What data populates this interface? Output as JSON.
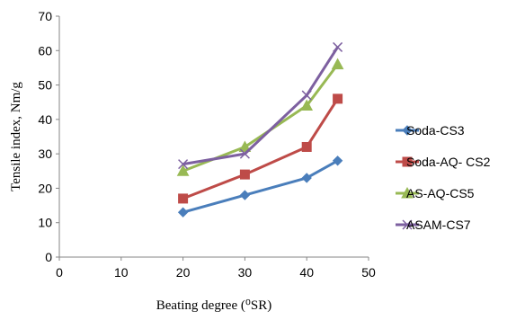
{
  "chart_data": {
    "type": "line",
    "title": "",
    "xlabel": "Beating degree (⁰SR)",
    "ylabel": "Tensile index, Nm/g",
    "xlim": [
      0,
      50
    ],
    "ylim": [
      0,
      70
    ],
    "x_ticks": [
      "0",
      "10",
      "20",
      "30",
      "40",
      "50"
    ],
    "y_ticks": [
      "0",
      "10",
      "20",
      "30",
      "40",
      "50",
      "60",
      "70"
    ],
    "grid": false,
    "legend_position": "right",
    "x": [
      20,
      30,
      40,
      45
    ],
    "series": [
      {
        "name": "Soda-CS3",
        "values": [
          13,
          18,
          23,
          28
        ],
        "color": "#4a7ebb",
        "marker": "diamond"
      },
      {
        "name": "Soda-AQ- CS2",
        "values": [
          17,
          24,
          32,
          46
        ],
        "color": "#be4b48",
        "marker": "square"
      },
      {
        "name": "AS-AQ-CS5",
        "values": [
          25,
          32,
          44,
          56
        ],
        "color": "#98b954",
        "marker": "triangle"
      },
      {
        "name": "ASAM-CS7",
        "values": [
          27,
          30,
          47,
          61
        ],
        "color": "#7d60a0",
        "marker": "x"
      }
    ]
  }
}
